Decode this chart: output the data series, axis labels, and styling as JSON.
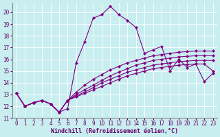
{
  "title": "",
  "xlabel": "Windchill (Refroidissement éolien,°C)",
  "bg_color": "#c8eef0",
  "line_color": "#800080",
  "xlim": [
    -0.5,
    23.5
  ],
  "ylim": [
    11.0,
    20.8
  ],
  "xticks": [
    0,
    1,
    2,
    3,
    4,
    5,
    6,
    7,
    8,
    9,
    10,
    11,
    12,
    13,
    14,
    15,
    16,
    17,
    18,
    19,
    20,
    21,
    22,
    23
  ],
  "yticks": [
    11,
    12,
    13,
    14,
    15,
    16,
    17,
    18,
    19,
    20
  ],
  "series": [
    {
      "x": [
        0,
        1,
        2,
        3,
        4,
        5,
        6,
        7,
        8,
        9,
        10,
        11,
        12,
        13,
        14,
        15,
        16,
        17,
        18,
        19,
        20,
        21,
        22,
        23
      ],
      "y": [
        13.1,
        12.0,
        12.3,
        12.5,
        12.2,
        11.5,
        11.8,
        15.7,
        17.5,
        19.5,
        19.8,
        20.5,
        19.8,
        19.3,
        18.7,
        16.5,
        16.8,
        17.1,
        15.0,
        16.0,
        15.3,
        15.6,
        14.1,
        14.8
      ]
    },
    {
      "x": [
        0,
        1,
        2,
        3,
        4,
        5,
        6,
        7,
        8,
        9,
        10,
        11,
        12,
        13,
        14,
        15,
        16,
        17,
        18,
        19,
        20,
        21,
        22,
        23
      ],
      "y": [
        13.1,
        12.0,
        12.3,
        12.5,
        12.2,
        11.5,
        12.5,
        13.2,
        13.8,
        14.3,
        14.7,
        15.1,
        15.4,
        15.7,
        15.9,
        16.1,
        16.3,
        16.4,
        16.5,
        16.6,
        16.65,
        16.7,
        16.7,
        16.7
      ]
    },
    {
      "x": [
        0,
        1,
        2,
        3,
        4,
        5,
        6,
        7,
        8,
        9,
        10,
        11,
        12,
        13,
        14,
        15,
        16,
        17,
        18,
        19,
        20,
        21,
        22,
        23
      ],
      "y": [
        13.1,
        12.0,
        12.3,
        12.5,
        12.2,
        11.5,
        12.5,
        13.0,
        13.4,
        13.8,
        14.2,
        14.6,
        14.9,
        15.2,
        15.5,
        15.7,
        15.9,
        16.0,
        16.1,
        16.2,
        16.25,
        16.3,
        16.3,
        16.3
      ]
    },
    {
      "x": [
        0,
        1,
        2,
        3,
        4,
        5,
        6,
        7,
        8,
        9,
        10,
        11,
        12,
        13,
        14,
        15,
        16,
        17,
        18,
        19,
        20,
        21,
        22,
        23
      ],
      "y": [
        13.1,
        12.0,
        12.3,
        12.5,
        12.2,
        11.5,
        12.5,
        12.9,
        13.2,
        13.6,
        14.0,
        14.3,
        14.6,
        14.9,
        15.1,
        15.3,
        15.5,
        15.6,
        15.7,
        15.8,
        15.85,
        15.9,
        15.9,
        15.9
      ]
    },
    {
      "x": [
        0,
        1,
        2,
        3,
        4,
        5,
        6,
        7,
        8,
        9,
        10,
        11,
        12,
        13,
        14,
        15,
        16,
        17,
        18,
        19,
        20,
        21,
        22,
        23
      ],
      "y": [
        13.1,
        12.0,
        12.3,
        12.5,
        12.2,
        11.5,
        12.5,
        12.8,
        13.1,
        13.4,
        13.7,
        14.0,
        14.3,
        14.6,
        14.8,
        15.0,
        15.2,
        15.3,
        15.4,
        15.5,
        15.55,
        15.6,
        15.6,
        15.0
      ]
    }
  ],
  "axis_label_color": "#660066",
  "tick_fontsize": 5.5,
  "xlabel_fontsize": 6.0
}
